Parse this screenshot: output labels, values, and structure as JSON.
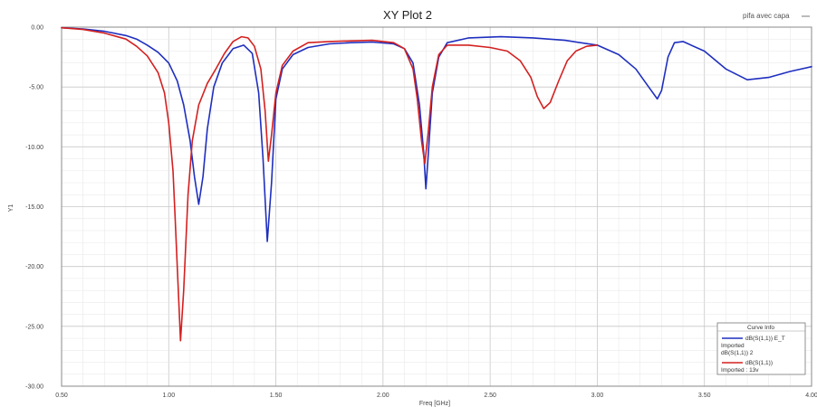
{
  "chart_data": {
    "type": "line",
    "title": "XY Plot 2",
    "corner_label": "pifa avec capa",
    "xlabel": "Freq [GHz]",
    "ylabel": "Y1",
    "xlim": [
      0.5,
      4.0
    ],
    "ylim": [
      -30,
      0
    ],
    "x_ticks": [
      "0.50",
      "1.00",
      "1.50",
      "2.00",
      "2.50",
      "3.00",
      "3.50",
      "4.00"
    ],
    "y_ticks": [
      "0.00",
      "-5.00",
      "-10.00",
      "-15.00",
      "-20.00",
      "-25.00",
      "-30.00"
    ],
    "grid": true,
    "legend": {
      "title": "Curve Info",
      "position": "bottom-right",
      "entries": [
        {
          "line1": "dB(S(1,1)) E_T",
          "line2": "Imported",
          "line3": "dB(S(1,1)) 2"
        },
        {
          "line1": "dB(S(1,1))",
          "line2": "Imported : 13v"
        }
      ]
    },
    "series": [
      {
        "color": "#1f2fbf",
        "points": [
          [
            0.5,
            -0.05
          ],
          [
            0.6,
            -0.15
          ],
          [
            0.7,
            -0.35
          ],
          [
            0.8,
            -0.7
          ],
          [
            0.85,
            -1.0
          ],
          [
            0.9,
            -1.5
          ],
          [
            0.95,
            -2.1
          ],
          [
            1.0,
            -3.0
          ],
          [
            1.04,
            -4.5
          ],
          [
            1.07,
            -6.5
          ],
          [
            1.1,
            -9.5
          ],
          [
            1.12,
            -12.5
          ],
          [
            1.14,
            -14.8
          ],
          [
            1.16,
            -12.5
          ],
          [
            1.18,
            -8.5
          ],
          [
            1.21,
            -5.0
          ],
          [
            1.25,
            -3.0
          ],
          [
            1.3,
            -1.8
          ],
          [
            1.35,
            -1.5
          ],
          [
            1.39,
            -2.2
          ],
          [
            1.42,
            -5.5
          ],
          [
            1.44,
            -11.0
          ],
          [
            1.46,
            -17.9
          ],
          [
            1.48,
            -13.0
          ],
          [
            1.5,
            -6.0
          ],
          [
            1.53,
            -3.5
          ],
          [
            1.58,
            -2.3
          ],
          [
            1.65,
            -1.7
          ],
          [
            1.75,
            -1.4
          ],
          [
            1.85,
            -1.3
          ],
          [
            1.95,
            -1.25
          ],
          [
            2.05,
            -1.4
          ],
          [
            2.1,
            -1.8
          ],
          [
            2.14,
            -3.0
          ],
          [
            2.17,
            -6.5
          ],
          [
            2.19,
            -10.5
          ],
          [
            2.2,
            -13.5
          ],
          [
            2.21,
            -11.0
          ],
          [
            2.23,
            -5.5
          ],
          [
            2.26,
            -2.5
          ],
          [
            2.3,
            -1.3
          ],
          [
            2.4,
            -0.9
          ],
          [
            2.55,
            -0.8
          ],
          [
            2.7,
            -0.9
          ],
          [
            2.85,
            -1.1
          ],
          [
            3.0,
            -1.5
          ],
          [
            3.1,
            -2.3
          ],
          [
            3.18,
            -3.5
          ],
          [
            3.24,
            -5.0
          ],
          [
            3.28,
            -6.0
          ],
          [
            3.3,
            -5.3
          ],
          [
            3.33,
            -2.5
          ],
          [
            3.36,
            -1.3
          ],
          [
            3.4,
            -1.2
          ],
          [
            3.5,
            -2.0
          ],
          [
            3.6,
            -3.5
          ],
          [
            3.7,
            -4.4
          ],
          [
            3.8,
            -4.2
          ],
          [
            3.9,
            -3.7
          ],
          [
            4.0,
            -3.3
          ]
        ]
      },
      {
        "color": "#d42020",
        "points": [
          [
            0.5,
            -0.05
          ],
          [
            0.6,
            -0.2
          ],
          [
            0.7,
            -0.5
          ],
          [
            0.8,
            -1.0
          ],
          [
            0.85,
            -1.6
          ],
          [
            0.9,
            -2.4
          ],
          [
            0.95,
            -3.8
          ],
          [
            0.98,
            -5.5
          ],
          [
            1.0,
            -8.0
          ],
          [
            1.02,
            -12.0
          ],
          [
            1.03,
            -16.0
          ],
          [
            1.04,
            -20.0
          ],
          [
            1.055,
            -26.2
          ],
          [
            1.07,
            -22.0
          ],
          [
            1.09,
            -14.0
          ],
          [
            1.11,
            -9.5
          ],
          [
            1.14,
            -6.5
          ],
          [
            1.18,
            -4.7
          ],
          [
            1.22,
            -3.5
          ],
          [
            1.26,
            -2.2
          ],
          [
            1.3,
            -1.2
          ],
          [
            1.34,
            -0.8
          ],
          [
            1.37,
            -0.9
          ],
          [
            1.4,
            -1.6
          ],
          [
            1.43,
            -3.5
          ],
          [
            1.45,
            -7.0
          ],
          [
            1.465,
            -11.2
          ],
          [
            1.48,
            -9.0
          ],
          [
            1.5,
            -5.5
          ],
          [
            1.53,
            -3.2
          ],
          [
            1.58,
            -2.0
          ],
          [
            1.65,
            -1.3
          ],
          [
            1.75,
            -1.2
          ],
          [
            1.85,
            -1.15
          ],
          [
            1.95,
            -1.1
          ],
          [
            2.05,
            -1.3
          ],
          [
            2.1,
            -1.8
          ],
          [
            2.14,
            -3.5
          ],
          [
            2.16,
            -6.0
          ],
          [
            2.18,
            -9.5
          ],
          [
            2.195,
            -11.4
          ],
          [
            2.21,
            -9.0
          ],
          [
            2.23,
            -5.0
          ],
          [
            2.26,
            -2.3
          ],
          [
            2.3,
            -1.5
          ],
          [
            2.4,
            -1.5
          ],
          [
            2.5,
            -1.7
          ],
          [
            2.58,
            -2.0
          ],
          [
            2.64,
            -2.8
          ],
          [
            2.69,
            -4.2
          ],
          [
            2.72,
            -5.8
          ],
          [
            2.75,
            -6.8
          ],
          [
            2.78,
            -6.3
          ],
          [
            2.82,
            -4.5
          ],
          [
            2.86,
            -2.8
          ],
          [
            2.9,
            -2.0
          ],
          [
            2.95,
            -1.6
          ],
          [
            3.0,
            -1.5
          ]
        ]
      }
    ]
  }
}
